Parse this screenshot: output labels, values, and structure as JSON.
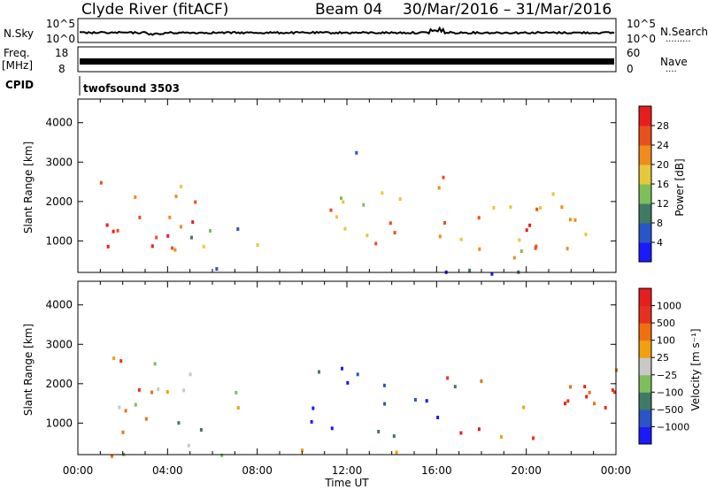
{
  "header": {
    "station": "Clyde River (fitACF)",
    "beam": "Beam 04",
    "dates": "30/Mar/2016 – 31/Mar/2016"
  },
  "top_strips": {
    "nsky_label": "N.Sky",
    "nsearch_label": "N.Search",
    "nsearch_dots": "·········",
    "nave_label": "Nave",
    "nave_dots": "····",
    "freq_label_1": "Freq.",
    "freq_label_2": "[MHz]",
    "cpid_label": "CPID",
    "cpid_value": "twofsound 3503",
    "nsky_ticks": [
      "10^5",
      "10^0"
    ],
    "nsearch_ticks": [
      "10^5",
      "10^0"
    ],
    "freq_ticks": [
      "18",
      "8"
    ],
    "nave_ticks": [
      "60",
      "0"
    ]
  },
  "x_axis": {
    "label": "Time UT",
    "ticks": [
      "00:00",
      "04:00",
      "08:00",
      "12:00",
      "16:00",
      "20:00",
      "00:00"
    ]
  },
  "chart_data": [
    {
      "type": "heatmap",
      "panel": "power",
      "ylabel": "Slant Range [km]",
      "y_ticks": [
        1000,
        2000,
        3000,
        4000
      ],
      "ylim": [
        200,
        4600
      ],
      "xlim_hours": [
        0,
        24
      ],
      "colorbar": {
        "label": "Power [dB]",
        "ticks": [
          "4",
          "8",
          "12",
          "16",
          "20",
          "24",
          "28"
        ],
        "colors": [
          "#1a1aff",
          "#2a55c8",
          "#3f7a64",
          "#7fbf5a",
          "#e6c83c",
          "#f08c1e",
          "#e8501e",
          "#e81e1e"
        ]
      },
      "regions": [
        {
          "t": [
            0.1,
            5.2
          ],
          "r": [
            400,
            2800
          ],
          "v": 0.78
        },
        {
          "t": [
            1.5,
            4.5
          ],
          "r": [
            800,
            2000
          ],
          "v": 0.9
        },
        {
          "t": [
            5.0,
            7.2
          ],
          "r": [
            700,
            2200
          ],
          "v": 0.45
        },
        {
          "t": [
            7.5,
            8.6
          ],
          "r": [
            700,
            1800
          ],
          "v": 0.4
        },
        {
          "t": [
            9.6,
            13.0
          ],
          "r": [
            800,
            2700
          ],
          "v": 0.6
        },
        {
          "t": [
            11.4,
            12.6
          ],
          "r": [
            2800,
            3500
          ],
          "v": 0.3
        },
        {
          "t": [
            13.2,
            16.8
          ],
          "r": [
            300,
            2400
          ],
          "v": 0.72
        },
        {
          "t": [
            15.5,
            16.4
          ],
          "r": [
            1700,
            2900
          ],
          "v": 0.55
        },
        {
          "t": [
            17.0,
            24.0
          ],
          "r": [
            600,
            2500
          ],
          "v": 0.6
        },
        {
          "t": [
            19.0,
            23.4
          ],
          "r": [
            800,
            1900
          ],
          "v": 0.7
        },
        {
          "t": [
            0.1,
            23.9
          ],
          "r": [
            200,
            380
          ],
          "v": 0.25
        }
      ]
    },
    {
      "type": "heatmap",
      "panel": "velocity",
      "ylabel": "Slant Range [km]",
      "y_ticks": [
        1000,
        2000,
        3000,
        4000
      ],
      "ylim": [
        200,
        4600
      ],
      "xlim_hours": [
        0,
        24
      ],
      "colorbar": {
        "label": "Velocity [m s⁻¹]",
        "ticks": [
          "1000",
          "500",
          "100",
          "25",
          "−25",
          "−100",
          "−500",
          "−1000"
        ],
        "colors": [
          "#1a1aff",
          "#2a55c8",
          "#3f7a64",
          "#7fbf5a",
          "#c8c8c8",
          "#f0a010",
          "#f07010",
          "#e83020",
          "#e81e1e"
        ]
      },
      "regions": [
        {
          "t": [
            0.1,
            5.0
          ],
          "r": [
            400,
            2800
          ],
          "v": 0.5
        },
        {
          "t": [
            1.0,
            4.0
          ],
          "r": [
            1800,
            2800
          ],
          "v": 0.7
        },
        {
          "t": [
            5.0,
            7.2
          ],
          "r": [
            700,
            2100
          ],
          "v": 0.45
        },
        {
          "t": [
            9.6,
            13.0
          ],
          "r": [
            800,
            2600
          ],
          "v": 0.1
        },
        {
          "t": [
            13.2,
            16.8
          ],
          "r": [
            300,
            2400
          ],
          "v": 0.15
        },
        {
          "t": [
            15.5,
            16.5
          ],
          "r": [
            1700,
            2900
          ],
          "v": 0.9
        },
        {
          "t": [
            17.0,
            24.0
          ],
          "r": [
            600,
            2500
          ],
          "v": 0.8
        },
        {
          "t": [
            22.0,
            24.0
          ],
          "r": [
            1600,
            2600
          ],
          "v": 0.65
        },
        {
          "t": [
            0.1,
            23.9
          ],
          "r": [
            200,
            380
          ],
          "v": 0.55
        }
      ]
    }
  ]
}
